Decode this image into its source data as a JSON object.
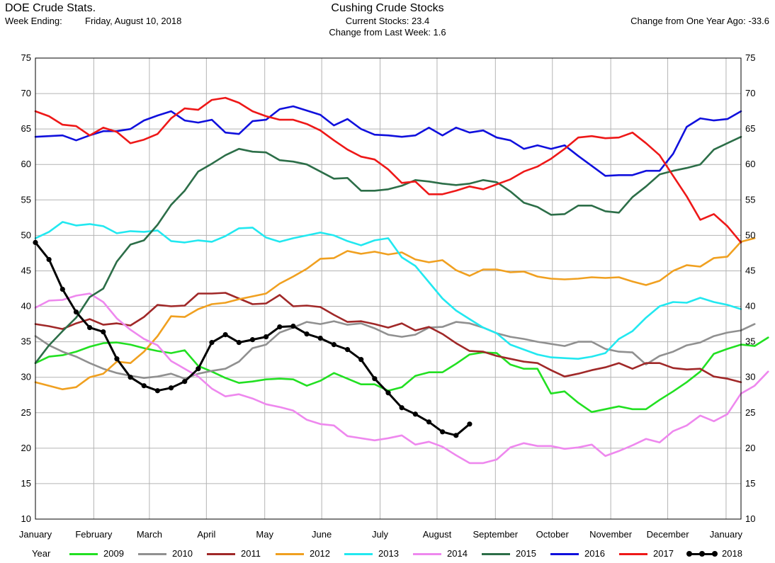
{
  "header": {
    "app_name": "DOE Crude Stats.",
    "week_ending_label": "Week Ending:",
    "week_ending_value": "Friday, August 10, 2018",
    "title": "Cushing Crude Stocks",
    "current_stocks": "Current Stocks:  23.4",
    "change_last_week": "Change from Last Week:   1.6",
    "change_year_ago": "Change from One Year Ago: -33.6"
  },
  "legend_label": "Year",
  "chart_data": {
    "type": "line",
    "title": "Cushing Crude Stocks",
    "xlabel": "",
    "ylabel": "",
    "ylim": [
      10,
      75
    ],
    "yticks": [
      10,
      15,
      20,
      25,
      30,
      35,
      40,
      45,
      50,
      55,
      60,
      65,
      70,
      75
    ],
    "x_unit": "week of year (0-52)",
    "xlim": [
      0,
      52
    ],
    "month_labels": [
      "January",
      "February",
      "March",
      "April",
      "May",
      "June",
      "July",
      "August",
      "September",
      "October",
      "November",
      "December",
      "January"
    ],
    "month_positions": [
      0,
      4.3,
      8.4,
      12.6,
      16.9,
      21.1,
      25.4,
      29.6,
      33.9,
      38.1,
      42.4,
      46.6,
      50.9
    ],
    "grid": true,
    "legend_position": "bottom",
    "series": [
      {
        "name": "2009",
        "color": "#22e022",
        "markers": false,
        "values": [
          32.0,
          32.9,
          33.1,
          33.6,
          34.3,
          34.8,
          34.9,
          34.6,
          34.1,
          33.7,
          33.4,
          33.8,
          31.6,
          30.8,
          29.9,
          29.2,
          29.4,
          29.7,
          29.8,
          29.7,
          28.8,
          29.5,
          30.6,
          29.8,
          29.0,
          29.0,
          28.1,
          28.6,
          30.2,
          30.7,
          30.7,
          31.9,
          33.2,
          33.5,
          33.4,
          31.8,
          31.2,
          31.2,
          27.7,
          28.0,
          26.4,
          25.1,
          25.5,
          25.9,
          25.5,
          25.5,
          26.8,
          28.0,
          29.3,
          30.8,
          33.3,
          34.0,
          34.6,
          34.4,
          35.6
        ]
      },
      {
        "name": "2010",
        "color": "#909090",
        "markers": false,
        "values": [
          35.8,
          34.5,
          33.6,
          32.9,
          32.0,
          31.2,
          30.6,
          30.2,
          29.9,
          30.1,
          30.5,
          29.8,
          30.5,
          30.9,
          31.2,
          32.2,
          34.1,
          34.6,
          36.3,
          37.0,
          37.8,
          37.5,
          37.9,
          37.4,
          37.6,
          36.9,
          36.0,
          35.7,
          36.0,
          37.0,
          37.1,
          37.8,
          37.6,
          37.0,
          36.2,
          35.7,
          35.4,
          35.0,
          34.7,
          34.4,
          35.0,
          35.0,
          34.0,
          33.6,
          33.5,
          31.8,
          33.0,
          33.6,
          34.5,
          34.9,
          35.8,
          36.3,
          36.6,
          37.5
        ]
      },
      {
        "name": "2011",
        "color": "#a02828",
        "markers": false,
        "values": [
          37.5,
          37.2,
          36.8,
          37.6,
          38.2,
          37.4,
          37.6,
          37.3,
          38.5,
          40.2,
          40.0,
          40.1,
          41.8,
          41.8,
          41.9,
          41.1,
          40.3,
          40.4,
          41.6,
          40.0,
          40.1,
          39.9,
          38.8,
          37.8,
          37.9,
          37.5,
          37.0,
          37.6,
          36.6,
          37.1,
          36.1,
          34.8,
          33.7,
          33.6,
          33.0,
          32.6,
          32.2,
          32.0,
          31.0,
          30.1,
          30.5,
          31.0,
          31.4,
          32.0,
          31.2,
          32.0,
          32.0,
          31.3,
          31.1,
          31.2,
          30.1,
          29.8,
          29.3
        ]
      },
      {
        "name": "2012",
        "color": "#f0a020",
        "markers": false,
        "values": [
          29.3,
          28.8,
          28.3,
          28.6,
          30.0,
          30.5,
          32.2,
          32.0,
          33.6,
          35.8,
          38.6,
          38.5,
          39.6,
          40.3,
          40.5,
          41.0,
          41.4,
          41.8,
          43.2,
          44.2,
          45.3,
          46.7,
          46.8,
          47.8,
          47.4,
          47.7,
          47.3,
          47.6,
          46.6,
          46.2,
          46.5,
          45.1,
          44.3,
          45.2,
          45.2,
          44.8,
          44.9,
          44.2,
          43.9,
          43.8,
          43.9,
          44.1,
          44.0,
          44.1,
          43.5,
          43.0,
          43.6,
          45.0,
          45.8,
          45.6,
          46.8,
          47.0,
          49.1,
          49.6
        ]
      },
      {
        "name": "2013",
        "color": "#22e8f0",
        "markers": false,
        "values": [
          49.6,
          50.5,
          51.9,
          51.4,
          51.6,
          51.3,
          50.3,
          50.6,
          50.5,
          50.7,
          49.2,
          49.0,
          49.3,
          49.1,
          49.9,
          51.0,
          51.1,
          49.7,
          49.1,
          49.6,
          50.0,
          50.4,
          50.0,
          49.2,
          48.6,
          49.3,
          49.6,
          46.9,
          45.7,
          43.4,
          41.1,
          39.4,
          38.2,
          37.0,
          36.2,
          34.6,
          33.9,
          33.2,
          32.8,
          32.7,
          32.6,
          32.9,
          33.4,
          35.4,
          36.5,
          38.4,
          40.0,
          40.6,
          40.5,
          41.2,
          40.6,
          40.2,
          39.6
        ]
      },
      {
        "name": "2014",
        "color": "#ee88ee",
        "markers": false,
        "values": [
          39.8,
          40.8,
          40.9,
          41.5,
          41.8,
          40.6,
          38.3,
          36.7,
          35.4,
          34.5,
          32.3,
          31.2,
          30.1,
          28.4,
          27.3,
          27.6,
          27.0,
          26.2,
          25.8,
          25.3,
          24.0,
          23.4,
          23.2,
          21.7,
          21.4,
          21.1,
          21.4,
          21.8,
          20.5,
          20.9,
          20.2,
          19.0,
          17.9,
          17.9,
          18.4,
          20.1,
          20.7,
          20.3,
          20.3,
          19.9,
          20.1,
          20.5,
          18.9,
          19.6,
          20.4,
          21.3,
          20.8,
          22.4,
          23.2,
          24.6,
          23.8,
          24.8,
          27.7,
          28.8,
          30.8
        ]
      },
      {
        "name": "2015",
        "color": "#2c6e48",
        "markers": false,
        "values": [
          32.0,
          34.5,
          36.5,
          38.4,
          41.3,
          42.5,
          46.3,
          48.7,
          49.3,
          51.5,
          54.3,
          56.3,
          59.0,
          60.1,
          61.3,
          62.2,
          61.8,
          61.7,
          60.6,
          60.4,
          60.0,
          59.0,
          58.0,
          58.1,
          56.3,
          56.3,
          56.5,
          57.0,
          57.8,
          57.6,
          57.3,
          57.1,
          57.3,
          57.8,
          57.5,
          56.2,
          54.6,
          54.0,
          52.9,
          53.0,
          54.2,
          54.2,
          53.4,
          53.2,
          55.4,
          56.9,
          58.6,
          59.1,
          59.5,
          60.0,
          62.1,
          63.0,
          63.9
        ]
      },
      {
        "name": "2016",
        "color": "#1010dd",
        "markers": false,
        "values": [
          63.9,
          64.0,
          64.1,
          63.4,
          64.1,
          64.7,
          64.7,
          65.0,
          66.2,
          66.9,
          67.5,
          66.2,
          65.9,
          66.3,
          64.5,
          64.3,
          66.1,
          66.3,
          67.8,
          68.2,
          67.6,
          67.0,
          65.5,
          66.4,
          65.0,
          64.2,
          64.1,
          63.9,
          64.1,
          65.2,
          64.1,
          65.2,
          64.5,
          64.8,
          63.8,
          63.4,
          62.2,
          62.7,
          62.2,
          62.7,
          61.2,
          59.8,
          58.4,
          58.5,
          58.5,
          59.1,
          59.1,
          61.5,
          65.3,
          66.5,
          66.2,
          66.4,
          67.5
        ]
      },
      {
        "name": "2017",
        "color": "#ee1818",
        "markers": false,
        "values": [
          67.5,
          66.8,
          65.6,
          65.4,
          64.1,
          65.2,
          64.6,
          63.0,
          63.5,
          64.3,
          66.5,
          67.9,
          67.7,
          69.1,
          69.4,
          68.7,
          67.5,
          66.8,
          66.3,
          66.3,
          65.7,
          64.8,
          63.4,
          62.1,
          61.1,
          60.7,
          59.3,
          57.4,
          57.6,
          55.8,
          55.8,
          56.3,
          56.9,
          56.5,
          57.2,
          57.9,
          59.0,
          59.7,
          60.8,
          62.2,
          63.8,
          64.0,
          63.7,
          63.8,
          64.5,
          63.0,
          61.3,
          58.4,
          55.5,
          52.2,
          53.0,
          51.3,
          49.0
        ]
      },
      {
        "name": "2018",
        "color": "#000000",
        "markers": true,
        "values": [
          49.0,
          46.6,
          42.4,
          39.2,
          37.0,
          36.4,
          32.6,
          30.0,
          28.8,
          28.1,
          28.5,
          29.4,
          31.2,
          34.9,
          36.0,
          34.9,
          35.3,
          35.7,
          37.1,
          37.2,
          36.1,
          35.5,
          34.6,
          33.9,
          32.5,
          29.8,
          27.8,
          25.7,
          24.8,
          23.7,
          22.3,
          21.8,
          23.4
        ]
      }
    ]
  }
}
